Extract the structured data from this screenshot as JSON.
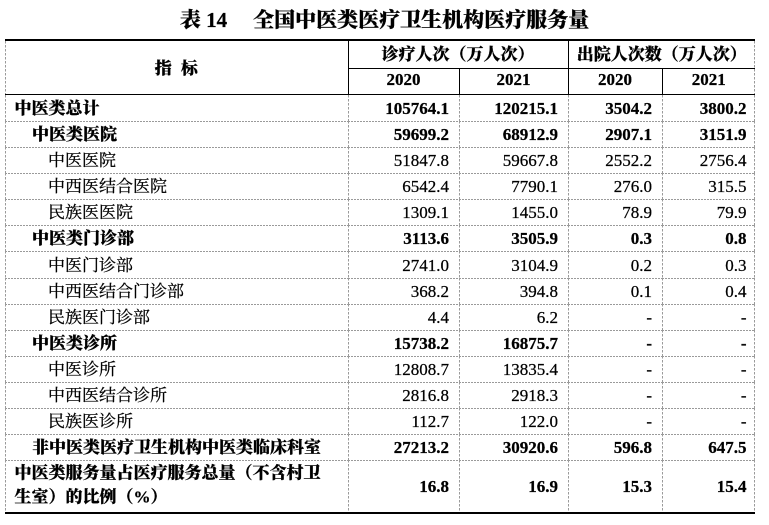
{
  "title": {
    "prefix": "表 14",
    "text": "全国中医类医疗卫生机构医疗服务量"
  },
  "table": {
    "indicator_header": "指 标",
    "column_groups": [
      {
        "label": "诊疗人次（万人次）",
        "years": [
          "2020",
          "2021"
        ]
      },
      {
        "label": "出院人次数（万人次）",
        "years": [
          "2020",
          "2021"
        ]
      }
    ],
    "rows": [
      {
        "label": "中医类总计",
        "indent": 0,
        "bold": true,
        "values": [
          "105764.1",
          "120215.1",
          "3504.2",
          "3800.2"
        ]
      },
      {
        "label": "中医类医院",
        "indent": 1,
        "bold": true,
        "values": [
          "59699.2",
          "68912.9",
          "2907.1",
          "3151.9"
        ]
      },
      {
        "label": "中医医院",
        "indent": 2,
        "bold": false,
        "values": [
          "51847.8",
          "59667.8",
          "2552.2",
          "2756.4"
        ]
      },
      {
        "label": "中西医结合医院",
        "indent": 2,
        "bold": false,
        "values": [
          "6542.4",
          "7790.1",
          "276.0",
          "315.5"
        ]
      },
      {
        "label": "民族医医院",
        "indent": 2,
        "bold": false,
        "values": [
          "1309.1",
          "1455.0",
          "78.9",
          "79.9"
        ]
      },
      {
        "label": "中医类门诊部",
        "indent": 1,
        "bold": true,
        "values": [
          "3113.6",
          "3505.9",
          "0.3",
          "0.8"
        ]
      },
      {
        "label": "中医门诊部",
        "indent": 2,
        "bold": false,
        "values": [
          "2741.0",
          "3104.9",
          "0.2",
          "0.3"
        ]
      },
      {
        "label": "中西医结合门诊部",
        "indent": 2,
        "bold": false,
        "values": [
          "368.2",
          "394.8",
          "0.1",
          "0.4"
        ]
      },
      {
        "label": "民族医门诊部",
        "indent": 2,
        "bold": false,
        "values": [
          "4.4",
          "6.2",
          "-",
          "-"
        ]
      },
      {
        "label": "中医类诊所",
        "indent": 1,
        "bold": true,
        "values": [
          "15738.2",
          "16875.7",
          "-",
          "-"
        ]
      },
      {
        "label": "中医诊所",
        "indent": 2,
        "bold": false,
        "values": [
          "12808.7",
          "13835.4",
          "-",
          "-"
        ]
      },
      {
        "label": "中西医结合诊所",
        "indent": 2,
        "bold": false,
        "values": [
          "2816.8",
          "2918.3",
          "-",
          "-"
        ]
      },
      {
        "label": "民族医诊所",
        "indent": 2,
        "bold": false,
        "values": [
          "112.7",
          "122.0",
          "-",
          "-"
        ]
      },
      {
        "label": "非中医类医疗卫生机构中医类临床科室",
        "indent": 1,
        "bold": true,
        "values": [
          "27213.2",
          "30920.6",
          "596.8",
          "647.5"
        ]
      },
      {
        "label": "中医类服务量占医疗服务总量（不含村卫生室）的比例（%）",
        "indent": 0,
        "bold": true,
        "wrap": true,
        "values": [
          "16.8",
          "16.9",
          "15.3",
          "15.4"
        ]
      }
    ]
  },
  "colors": {
    "text": "#000000",
    "solid_border": "#000000",
    "dashed_border": "#9a9a9a",
    "background": "#ffffff"
  }
}
